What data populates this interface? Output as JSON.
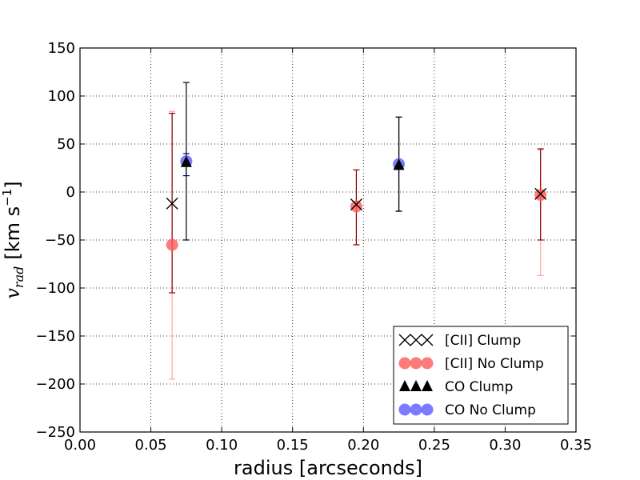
{
  "chart_data": {
    "type": "scatter",
    "title": "",
    "xlabel": "radius [arcseconds]",
    "ylabel_var": "v",
    "ylabel_sub": "rad",
    "ylabel_unit": "[km s",
    "ylabel_exp": "−1",
    "ylabel_close": "]",
    "xlim": [
      0.0,
      0.35
    ],
    "ylim": [
      -250,
      150
    ],
    "xticks": [
      0.0,
      0.05,
      0.1,
      0.15,
      0.2,
      0.25,
      0.3,
      0.35
    ],
    "xtick_labels": [
      "0.00",
      "0.05",
      "0.10",
      "0.15",
      "0.20",
      "0.25",
      "0.30",
      "0.35"
    ],
    "yticks": [
      -250,
      -200,
      -150,
      -100,
      -50,
      0,
      50,
      100,
      150
    ],
    "ytick_labels": [
      "−250",
      "−200",
      "−150",
      "−100",
      "−50",
      "0",
      "50",
      "100",
      "150"
    ],
    "grid": true,
    "legend_position": "bottom-right",
    "series": [
      {
        "name": "[CII] Clump",
        "marker": "x",
        "color": "#000000",
        "error_color": "#8b0000",
        "points": [
          {
            "x": 0.065,
            "y": -12,
            "ylow": -105,
            "yhigh": 82
          },
          {
            "x": 0.195,
            "y": -13,
            "ylow": -55,
            "yhigh": 23
          },
          {
            "x": 0.325,
            "y": -2,
            "ylow": -50,
            "yhigh": 45
          }
        ]
      },
      {
        "name": "[CII] No Clump",
        "marker": "circle",
        "color": "#ff5a5a",
        "error_color": "#ff8080",
        "points": [
          {
            "x": 0.065,
            "y": -55,
            "ylow": -195,
            "yhigh": 84
          },
          {
            "x": 0.195,
            "y": -15,
            "ylow": -55,
            "yhigh": 23
          },
          {
            "x": 0.325,
            "y": -3,
            "ylow": -87,
            "yhigh": 44
          }
        ]
      },
      {
        "name": "CO Clump",
        "marker": "triangle",
        "color": "#000000",
        "error_color": "#000000",
        "points": [
          {
            "x": 0.075,
            "y": 31,
            "ylow": -50,
            "yhigh": 114
          },
          {
            "x": 0.225,
            "y": 28,
            "ylow": -20,
            "yhigh": 78
          }
        ]
      },
      {
        "name": "CO No Clump",
        "marker": "circle",
        "color": "#5a5aff",
        "error_color": "#00008b",
        "points": [
          {
            "x": 0.075,
            "y": 32,
            "ylow": 17,
            "yhigh": 40
          },
          {
            "x": 0.225,
            "y": 29,
            "ylow": -20,
            "yhigh": 78
          }
        ]
      }
    ]
  }
}
